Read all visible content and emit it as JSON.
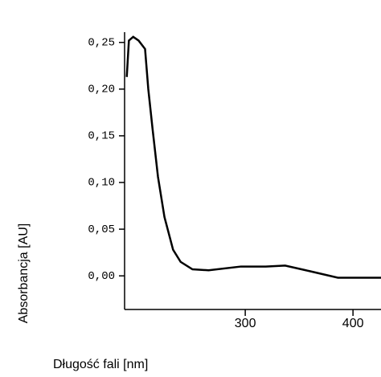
{
  "chart_data": {
    "type": "line",
    "y_label": "Absorbancja [AU]",
    "x_label": "Długość fali [nm]",
    "x": [
      190,
      192,
      196,
      201,
      207,
      210,
      214,
      219,
      225,
      233,
      240,
      251,
      266,
      296,
      319,
      337,
      360,
      386,
      426
    ],
    "series": [
      {
        "color": "#000000",
        "values": [
          0.213,
          0.252,
          0.256,
          0.252,
          0.243,
          0.2,
          0.157,
          0.106,
          0.063,
          0.028,
          0.015,
          0.007,
          0.006,
          0.01,
          0.01,
          0.011,
          0.005,
          -0.002,
          -0.002
        ]
      }
    ],
    "xlim": [
      188,
      426
    ],
    "xticks": [
      300,
      400
    ],
    "ylim": [
      -0.036,
      0.261
    ],
    "yticks": [
      {
        "value": 0,
        "label": "0,00"
      },
      {
        "value": 0.05,
        "label": "0,05"
      },
      {
        "value": 0.1,
        "label": "0,10"
      },
      {
        "value": 0.15,
        "label": "0,15"
      },
      {
        "value": 0.2,
        "label": "0,20"
      },
      {
        "value": 0.25,
        "label": "0,25"
      }
    ]
  }
}
